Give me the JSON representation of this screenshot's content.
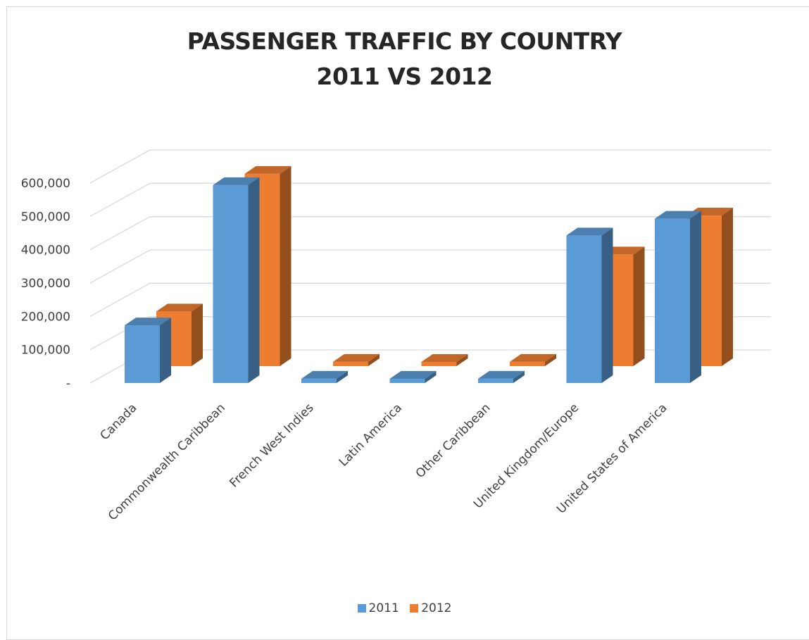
{
  "chart_data": {
    "type": "bar",
    "title": [
      "PASSENGER TRAFFIC BY COUNTRY",
      "2011 VS 2012"
    ],
    "xlabel": "",
    "ylabel": "",
    "ylim": [
      0,
      600000
    ],
    "yticks": [
      0,
      100000,
      200000,
      300000,
      400000,
      500000,
      600000
    ],
    "ytick_labels": [
      "-",
      "100,000",
      "200,000",
      "300,000",
      "400,000",
      "500,000",
      "600,000"
    ],
    "categories": [
      "Canada",
      "Commonwealth Caribbean",
      "French West Indies",
      "Latin America",
      "Other Caribbean",
      "United Kingdom/Europe",
      "United States of America"
    ],
    "series": [
      {
        "name": "2011",
        "color": "#5b9bd5",
        "values": [
          173000,
          594000,
          13000,
          5000,
          13000,
          443000,
          493000
        ]
      },
      {
        "name": "2012",
        "color": "#ed7d31",
        "values": [
          164000,
          577000,
          13000,
          5000,
          13000,
          335000,
          452000
        ]
      }
    ],
    "grid": true,
    "legend": "bottom"
  }
}
